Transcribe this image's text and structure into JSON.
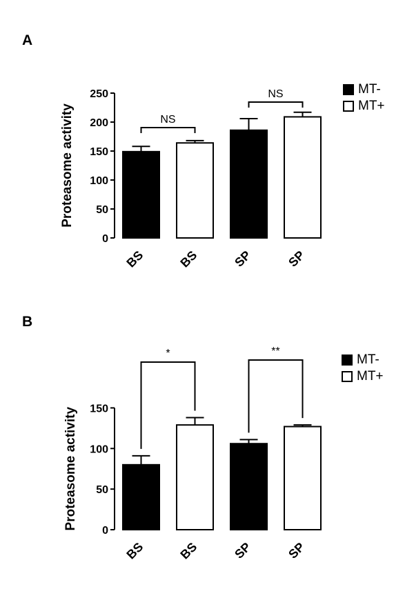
{
  "panels": [
    {
      "letter": "A",
      "legend": [
        {
          "label": "MT-",
          "color": "#000000"
        },
        {
          "label": "MT+",
          "color": "#ffffff"
        }
      ]
    },
    {
      "letter": "B",
      "legend": [
        {
          "label": "MT-",
          "color": "#000000"
        },
        {
          "label": "MT+",
          "color": "#ffffff"
        }
      ]
    }
  ],
  "chart_data": [
    {
      "type": "bar",
      "ylabel": "Proteasome activity",
      "xlabel": "",
      "ylim": [
        0,
        250
      ],
      "yticks": [
        0,
        50,
        100,
        150,
        200,
        250
      ],
      "categories": [
        "BS",
        "BS",
        "SP",
        "SP"
      ],
      "values": [
        149,
        164,
        186,
        209
      ],
      "errors": [
        9,
        4,
        20,
        8
      ],
      "bar_colors": [
        "#000000",
        "#ffffff",
        "#000000",
        "#ffffff"
      ],
      "significance": [
        {
          "from": 0,
          "to": 1,
          "label": "NS"
        },
        {
          "from": 2,
          "to": 3,
          "label": "NS"
        }
      ]
    },
    {
      "type": "bar",
      "ylabel": "Proteasome activity",
      "xlabel": "",
      "ylim": [
        0,
        175
      ],
      "yticks": [
        0,
        50,
        100,
        150
      ],
      "categories": [
        "BS",
        "BS",
        "SP",
        "SP"
      ],
      "values": [
        80,
        129,
        106,
        127
      ],
      "errors": [
        11,
        9,
        5,
        2
      ],
      "bar_colors": [
        "#000000",
        "#ffffff",
        "#000000",
        "#ffffff"
      ],
      "significance": [
        {
          "from": 0,
          "to": 1,
          "label": "*"
        },
        {
          "from": 2,
          "to": 3,
          "label": "**"
        }
      ]
    }
  ]
}
